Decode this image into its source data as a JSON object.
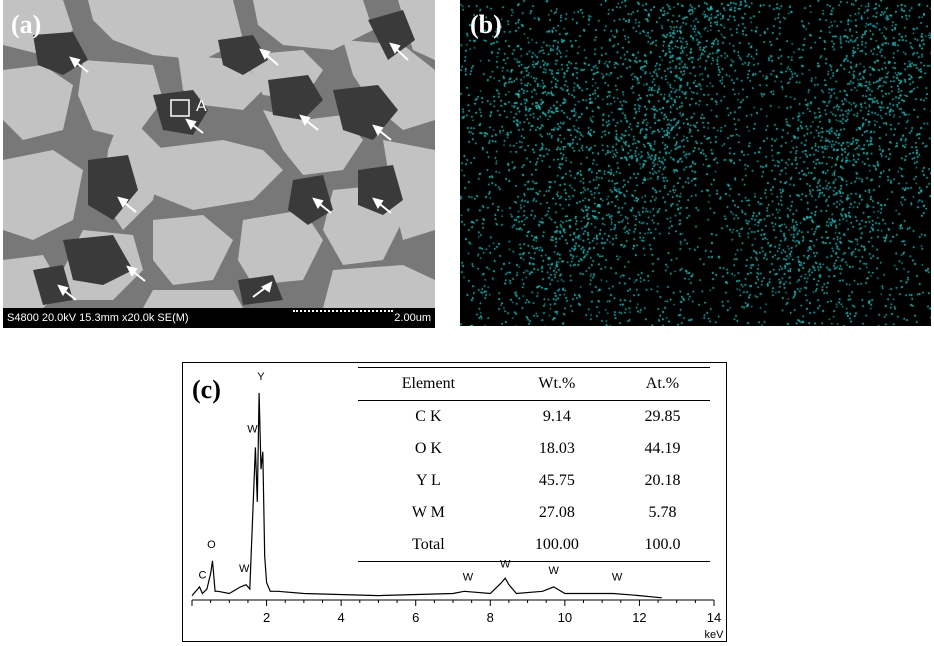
{
  "panel_a": {
    "label": "(a)",
    "region_label": "A",
    "info_text": "S4800 20.0kV 15.3mm x20.0k SE(M)",
    "scale_text": "2.00um"
  },
  "panel_b": {
    "label": "(b)",
    "dot_color": "#2ec4c4"
  },
  "panel_c": {
    "label": "(c)",
    "table": {
      "headers": [
        "Element",
        "Wt.%",
        "At.%"
      ],
      "rows": [
        [
          "C K",
          "9.14",
          "29.85"
        ],
        [
          "O K",
          "18.03",
          "44.19"
        ],
        [
          "Y L",
          "45.75",
          "20.18"
        ],
        [
          "W M",
          "27.08",
          "5.78"
        ],
        [
          "Total",
          "100.00",
          "100.0"
        ]
      ]
    }
  },
  "chart_data": {
    "type": "line",
    "title": "",
    "xlabel": "keV",
    "ylabel": "",
    "xlim": [
      0,
      14
    ],
    "ylim": [
      0,
      100
    ],
    "xticks": [
      2,
      4,
      6,
      8,
      10,
      12,
      14
    ],
    "x": [
      0.0,
      0.2,
      0.28,
      0.4,
      0.5,
      0.55,
      0.62,
      0.7,
      1.0,
      1.3,
      1.45,
      1.55,
      1.7,
      1.75,
      1.8,
      1.85,
      1.9,
      1.95,
      2.0,
      2.1,
      2.3,
      3.0,
      5.0,
      7.0,
      7.3,
      8.0,
      8.3,
      8.4,
      8.5,
      8.7,
      9.4,
      9.7,
      10.0,
      11.3,
      12.0,
      12.6
    ],
    "y": [
      2,
      6,
      3,
      5,
      12,
      18,
      4,
      4,
      3,
      6,
      7,
      5,
      70,
      45,
      95,
      60,
      68,
      20,
      8,
      4,
      4,
      3,
      2,
      3,
      4,
      3,
      8,
      10,
      7,
      3,
      4,
      6,
      3,
      3,
      2,
      1
    ],
    "peak_labels": [
      {
        "text": "C",
        "x": 0.28,
        "y": 8
      },
      {
        "text": "O",
        "x": 0.52,
        "y": 22
      },
      {
        "text": "W",
        "x": 1.4,
        "y": 11
      },
      {
        "text": "W",
        "x": 1.62,
        "y": 75
      },
      {
        "text": "Y",
        "x": 1.85,
        "y": 99
      },
      {
        "text": "W",
        "x": 7.4,
        "y": 7
      },
      {
        "text": "W",
        "x": 8.4,
        "y": 13
      },
      {
        "text": "W",
        "x": 9.7,
        "y": 10
      },
      {
        "text": "W",
        "x": 11.4,
        "y": 7
      }
    ]
  }
}
